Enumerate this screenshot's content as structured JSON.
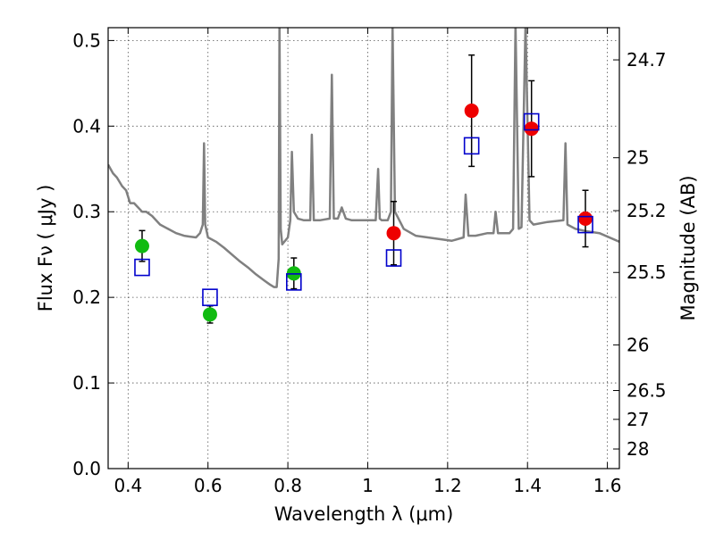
{
  "chart_data": {
    "type": "scatter",
    "xlabel": "Wavelength  λ (μm)",
    "ylabel": "Flux  Fν  ( μJy )",
    "ylabel_right": "Magnitude (AB)",
    "xlim": [
      0.35,
      1.63
    ],
    "ylim": [
      0,
      0.515
    ],
    "grid": true,
    "x_ticks": [
      0.4,
      0.6,
      0.8,
      1.0,
      1.2,
      1.4,
      1.6
    ],
    "x_tick_labels": [
      "0.4",
      "0.6",
      "0.8",
      "1",
      "1.2",
      "1.4",
      "1.6"
    ],
    "y_ticks": [
      0.0,
      0.1,
      0.2,
      0.3,
      0.4,
      0.5
    ],
    "y_tick_labels": [
      "0.0",
      "0.1",
      "0.2",
      "0.3",
      "0.4",
      "0.5"
    ],
    "right_ticks": [
      {
        "flux": 0.4774,
        "label": "24.7"
      },
      {
        "flux": 0.3631,
        "label": "25"
      },
      {
        "flux": 0.3013,
        "label": "25.2"
      },
      {
        "flux": 0.2291,
        "label": "25.5"
      },
      {
        "flux": 0.1445,
        "label": "26"
      },
      {
        "flux": 0.0912,
        "label": "26.5"
      },
      {
        "flux": 0.0575,
        "label": "27"
      },
      {
        "flux": 0.0229,
        "label": "28"
      }
    ],
    "colors": {
      "green": "#11bb11",
      "red": "#ee0000",
      "blue": "#0000cc",
      "model": "#808080",
      "grid": "#555555"
    },
    "series": [
      {
        "kind": "model-spectrum",
        "x": [
          0.35,
          0.362,
          0.372,
          0.385,
          0.395,
          0.405,
          0.415,
          0.425,
          0.435,
          0.445,
          0.46,
          0.48,
          0.5,
          0.52,
          0.54,
          0.555,
          0.57,
          0.58,
          0.587,
          0.59,
          0.593,
          0.6,
          0.62,
          0.64,
          0.66,
          0.68,
          0.7,
          0.72,
          0.74,
          0.755,
          0.765,
          0.772,
          0.777,
          0.779,
          0.782,
          0.786,
          0.8,
          0.806,
          0.81,
          0.815,
          0.825,
          0.84,
          0.856,
          0.86,
          0.865,
          0.88,
          0.905,
          0.91,
          0.915,
          0.925,
          0.935,
          0.945,
          0.96,
          0.98,
          1.0,
          1.02,
          1.026,
          1.03,
          1.035,
          1.05,
          1.058,
          1.062,
          1.068,
          1.09,
          1.12,
          1.15,
          1.18,
          1.21,
          1.24,
          1.245,
          1.252,
          1.27,
          1.3,
          1.315,
          1.32,
          1.326,
          1.34,
          1.355,
          1.364,
          1.37,
          1.378,
          1.385,
          1.395,
          1.405,
          1.415,
          1.45,
          1.49,
          1.495,
          1.5,
          1.52,
          1.55,
          1.58,
          1.63
        ],
        "y": [
          0.355,
          0.345,
          0.34,
          0.33,
          0.325,
          0.31,
          0.31,
          0.305,
          0.3,
          0.3,
          0.295,
          0.285,
          0.28,
          0.275,
          0.272,
          0.271,
          0.27,
          0.275,
          0.285,
          0.38,
          0.285,
          0.27,
          0.265,
          0.258,
          0.25,
          0.242,
          0.235,
          0.227,
          0.22,
          0.215,
          0.212,
          0.212,
          0.245,
          0.52,
          0.28,
          0.262,
          0.27,
          0.29,
          0.37,
          0.3,
          0.292,
          0.29,
          0.29,
          0.39,
          0.29,
          0.29,
          0.292,
          0.46,
          0.292,
          0.292,
          0.305,
          0.292,
          0.29,
          0.29,
          0.29,
          0.29,
          0.35,
          0.292,
          0.29,
          0.29,
          0.3,
          0.52,
          0.3,
          0.28,
          0.272,
          0.27,
          0.268,
          0.266,
          0.27,
          0.32,
          0.272,
          0.272,
          0.275,
          0.275,
          0.3,
          0.275,
          0.275,
          0.275,
          0.28,
          0.52,
          0.28,
          0.282,
          0.52,
          0.29,
          0.285,
          0.288,
          0.29,
          0.38,
          0.285,
          0.28,
          0.277,
          0.275,
          0.265
        ]
      },
      {
        "kind": "observed-green",
        "x": [
          0.435,
          0.605,
          0.815
        ],
        "y": [
          0.26,
          0.18,
          0.228
        ],
        "yerr": [
          0.018,
          0.01,
          0.018
        ]
      },
      {
        "kind": "observed-red",
        "x": [
          1.065,
          1.26,
          1.41,
          1.545
        ],
        "y": [
          0.275,
          0.418,
          0.397,
          0.292
        ],
        "yerr": [
          0.037,
          0.065,
          0.056,
          0.033
        ]
      },
      {
        "kind": "model-fit-squares",
        "x": [
          0.435,
          0.605,
          0.815,
          1.065,
          1.26,
          1.41,
          1.545
        ],
        "y": [
          0.235,
          0.2,
          0.218,
          0.246,
          0.377,
          0.405,
          0.285
        ]
      }
    ]
  }
}
